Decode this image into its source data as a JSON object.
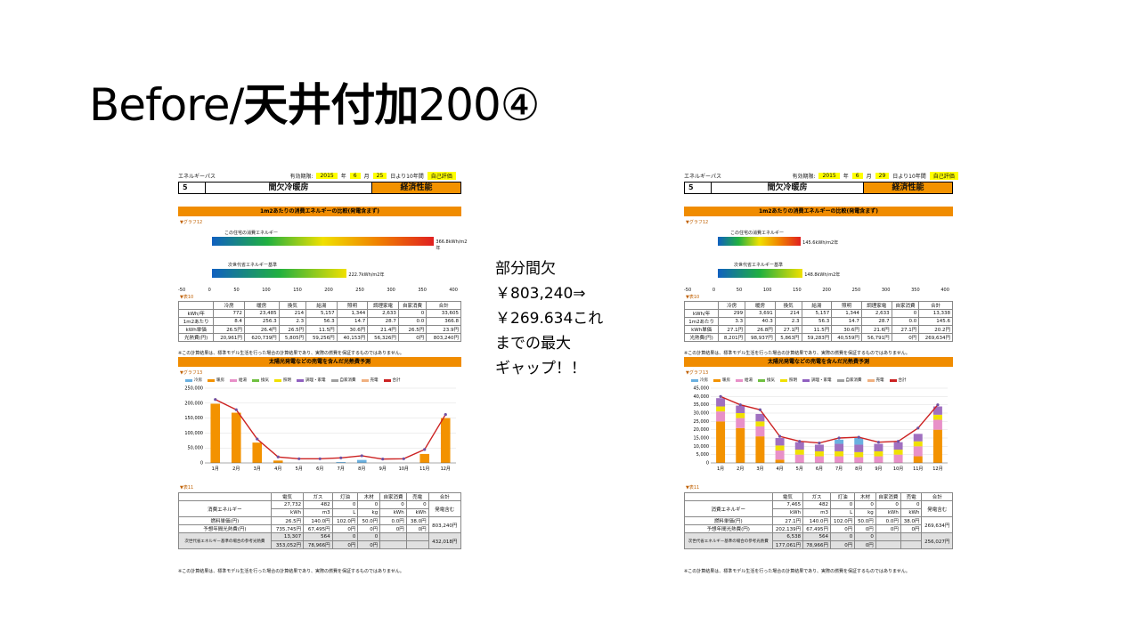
{
  "slide": {
    "title_prefix": "Before/",
    "title_bold": "天井付加",
    "title_suffix": "200④",
    "note": "部分間欠\n￥803,240⇒\n￥269.634これ\nまでの最大\nギャップ！！"
  },
  "left_sheet": {
    "header": {
      "app": "エネルギーパス",
      "valid_label": "有効期限:",
      "year": "2015",
      "year_unit": "年",
      "month": "6",
      "month_unit": "月",
      "day": "25",
      "day_unit": "日より10年間",
      "self_eval": "自己評価"
    },
    "number": "5",
    "name": "間欠冷暖房",
    "perf": "経済性能",
    "section1_title": "1m2あたりの消費エネルギーの比較(発電含まず)",
    "graph_label": "▼グラフ12",
    "bar1_label": "この住宅の消費エネルギー",
    "bar1_value": "366.8kWh/m2年",
    "bar2_label": "次世代省エネルギー基準",
    "bar2_value": "222.7kWh/m2年",
    "axis": [
      "-50",
      "0",
      "50",
      "100",
      "150",
      "200",
      "250",
      "300",
      "350",
      "400"
    ],
    "table_label": "▼表10",
    "table1": {
      "headers": [
        "",
        "冷房",
        "暖房",
        "換気",
        "給湯",
        "照明",
        "調理家電",
        "自家消費",
        "合計"
      ],
      "rows": [
        [
          "kWh/年",
          "772",
          "23,485",
          "214",
          "5,157",
          "1,344",
          "2,633",
          "0",
          "33,605"
        ],
        [
          "1m2あたり",
          "8.4",
          "256.3",
          "2.3",
          "56.3",
          "14.7",
          "28.7",
          "0.0",
          "366.8"
        ],
        [
          "kWh単価",
          "26.5円",
          "26.4円",
          "26.5円",
          "11.5円",
          "30.6円",
          "21.4円",
          "26.5円",
          "23.9円"
        ],
        [
          "光熱費(円)",
          "20,961円",
          "620,739円",
          "5,805円",
          "59,256円",
          "40,153円",
          "56,326円",
          "0円",
          "803,240円"
        ]
      ]
    },
    "footnote1": "※この計算結果は、標準モデル生活を行った場合の計算結果であり、実際の燃費を保証するものではありません。",
    "section2_title": "太陽光発電などの売電を含んだ光熱費予測",
    "graph2_label": "▼グラフ13",
    "legend": [
      "冷房",
      "暖房",
      "給湯",
      "換気",
      "照明",
      "調理・家電",
      "自家消費",
      "売電",
      "合計"
    ],
    "table2_label": "▼表11",
    "table2": {
      "headers": [
        "",
        "電気",
        "ガス",
        "灯油",
        "木材",
        "自家消費",
        "売電",
        "合計"
      ],
      "consumption_label": "消費エネルギー",
      "consumption": [
        "27,732",
        "482",
        "0",
        "0",
        "0",
        "0"
      ],
      "consumption_units": [
        "kWh",
        "m3",
        "L",
        "kg",
        "kWh",
        "kWh"
      ],
      "consumption_total": "発電含む",
      "unit_price_label": "燃料単価(円)",
      "unit_price": [
        "26.5円",
        "140.0円",
        "102.0円",
        "50.0円",
        "0.0円",
        "38.0円"
      ],
      "annual_label": "予想年間光熱費(円)",
      "annual": [
        "735,745円",
        "67,495円",
        "0円",
        "0円",
        "0円",
        "0円"
      ],
      "annual_total": "803,240円",
      "ref_label": "次世代省エネルギー基準の場合の参考光熱費",
      "ref_qty": [
        "13,307",
        "564",
        "0",
        "0"
      ],
      "ref_cost": [
        "353,052円",
        "78,966円",
        "0円",
        "0円"
      ],
      "ref_total": "432,018円"
    },
    "footnote2": "※この計算結果は、標準モデル生活を行った場合の計算結果であり、実際の燃費を保証するものではありません。"
  },
  "right_sheet": {
    "header": {
      "app": "エネルギーパス",
      "valid_label": "有効期限:",
      "year": "2015",
      "year_unit": "年",
      "month": "6",
      "month_unit": "月",
      "day": "29",
      "day_unit": "日より10年間",
      "self_eval": "自己評価"
    },
    "number": "5",
    "name": "間欠冷暖房",
    "perf": "経済性能",
    "section1_title": "1m2あたりの消費エネルギーの比較(発電含まず)",
    "graph_label": "▼グラフ12",
    "bar1_label": "この住宅の消費エネルギー",
    "bar1_value": "145.6kWh/m2年",
    "bar2_label": "次世代省エネルギー基準",
    "bar2_value": "148.8kWh/m2年",
    "axis": [
      "-50",
      "0",
      "50",
      "100",
      "150",
      "200",
      "250",
      "300",
      "350",
      "400"
    ],
    "table_label": "▼表10",
    "table1": {
      "headers": [
        "",
        "冷房",
        "暖房",
        "換気",
        "給湯",
        "照明",
        "調理家電",
        "自家消費",
        "合計"
      ],
      "rows": [
        [
          "kWh/年",
          "299",
          "3,691",
          "214",
          "5,157",
          "1,344",
          "2,633",
          "0",
          "13,338"
        ],
        [
          "1m2あたり",
          "3.3",
          "40.3",
          "2.3",
          "56.3",
          "14.7",
          "28.7",
          "0.0",
          "145.6"
        ],
        [
          "kWh単価",
          "27.1円",
          "26.8円",
          "27.1円",
          "11.5円",
          "30.6円",
          "21.6円",
          "27.1円",
          "20.2円"
        ],
        [
          "光熱費(円)",
          "8,201円",
          "98,937円",
          "5,863円",
          "59,283円",
          "40,559円",
          "56,791円",
          "0円",
          "269,634円"
        ]
      ]
    },
    "footnote1": "※この計算結果は、標準モデル生活を行った場合の計算結果であり、実際の燃費を保証するものではありません。",
    "section2_title": "太陽光発電などの売電を含んだ光熱費予測",
    "graph2_label": "▼グラフ13",
    "legend": [
      "冷房",
      "暖房",
      "給湯",
      "換気",
      "照明",
      "調理・家電",
      "自家消費",
      "売電",
      "合計"
    ],
    "table2_label": "▼表11",
    "table2": {
      "headers": [
        "",
        "電気",
        "ガス",
        "灯油",
        "木材",
        "自家消費",
        "売電",
        "合計"
      ],
      "consumption_label": "消費エネルギー",
      "consumption": [
        "7,465",
        "482",
        "0",
        "0",
        "0",
        "0"
      ],
      "consumption_units": [
        "kWh",
        "m3",
        "L",
        "kg",
        "kWh",
        "kWh"
      ],
      "consumption_total": "発電含む",
      "unit_price_label": "燃料単価(円)",
      "unit_price": [
        "27.1円",
        "140.0円",
        "102.0円",
        "50.0円",
        "0.0円",
        "38.0円"
      ],
      "annual_label": "予想年間光熱費(円)",
      "annual": [
        "202,139円",
        "67,495円",
        "0円",
        "0円",
        "0円",
        "0円"
      ],
      "annual_total": "269,634円",
      "ref_label": "次世代省エネルギー基準の場合の参考光熱費",
      "ref_qty": [
        "6,538",
        "564",
        "0",
        "0"
      ],
      "ref_cost": [
        "177,061円",
        "78,966円",
        "0円",
        "0円"
      ],
      "ref_total": "256,027円"
    },
    "footnote2": "※この計算結果は、標準モデル生活を行った場合の計算結果であり、実際の燃費を保証するものではありません。"
  },
  "colors": {
    "orange": "#f08c00",
    "bar_orange": "#f39200",
    "total_line": "#cc2222",
    "yellow": "#ffff00"
  },
  "chart_data": [
    {
      "type": "bar",
      "categories": [
        "1月",
        "2月",
        "3月",
        "4月",
        "5月",
        "6月",
        "7月",
        "8月",
        "9月",
        "10月",
        "11月",
        "12月"
      ],
      "ylim": [
        0,
        250000
      ],
      "yticks": [
        "0",
        "50,000",
        "100,000",
        "150,000",
        "200,000",
        "250,000"
      ],
      "series": [
        {
          "name": "暖房",
          "values": [
            198000,
            168000,
            68000,
            8000,
            0,
            0,
            0,
            0,
            0,
            0,
            30000,
            150000
          ]
        },
        {
          "name": "冷房",
          "values": [
            0,
            0,
            0,
            0,
            0,
            0,
            3000,
            10000,
            0,
            0,
            0,
            0
          ]
        },
        {
          "name": "合計",
          "values": [
            212000,
            178000,
            80000,
            20000,
            14000,
            14000,
            17000,
            24000,
            13000,
            14000,
            45000,
            162000
          ]
        }
      ]
    },
    {
      "type": "bar",
      "categories": [
        "1月",
        "2月",
        "3月",
        "4月",
        "5月",
        "6月",
        "7月",
        "8月",
        "9月",
        "10月",
        "11月",
        "12月"
      ],
      "ylim": [
        0,
        45000
      ],
      "yticks": [
        "0",
        "5,000",
        "10,000",
        "15,000",
        "20,000",
        "25,000",
        "30,000",
        "35,000",
        "40,000",
        "45,000"
      ],
      "series": [
        {
          "name": "暖房",
          "values": [
            25000,
            21000,
            16000,
            2000,
            0,
            0,
            0,
            0,
            0,
            0,
            4000,
            20000
          ]
        },
        {
          "name": "給湯",
          "values": [
            6000,
            6000,
            6000,
            5500,
            5000,
            4000,
            4000,
            3500,
            4000,
            5000,
            6000,
            6000
          ]
        },
        {
          "name": "照明",
          "values": [
            3000,
            3000,
            3000,
            3000,
            3000,
            3000,
            3000,
            3000,
            3000,
            3000,
            3000,
            3000
          ]
        },
        {
          "name": "調理・家電",
          "values": [
            5000,
            4500,
            4500,
            4500,
            4500,
            4000,
            4500,
            4500,
            4500,
            4500,
            4500,
            5000
          ]
        },
        {
          "name": "冷房",
          "values": [
            0,
            0,
            0,
            0,
            0,
            0,
            2500,
            4000,
            0,
            0,
            0,
            0
          ]
        },
        {
          "name": "合計",
          "values": [
            40000,
            35000,
            32000,
            16000,
            13000,
            12000,
            15000,
            15500,
            12500,
            13000,
            21000,
            35000
          ]
        }
      ]
    }
  ]
}
